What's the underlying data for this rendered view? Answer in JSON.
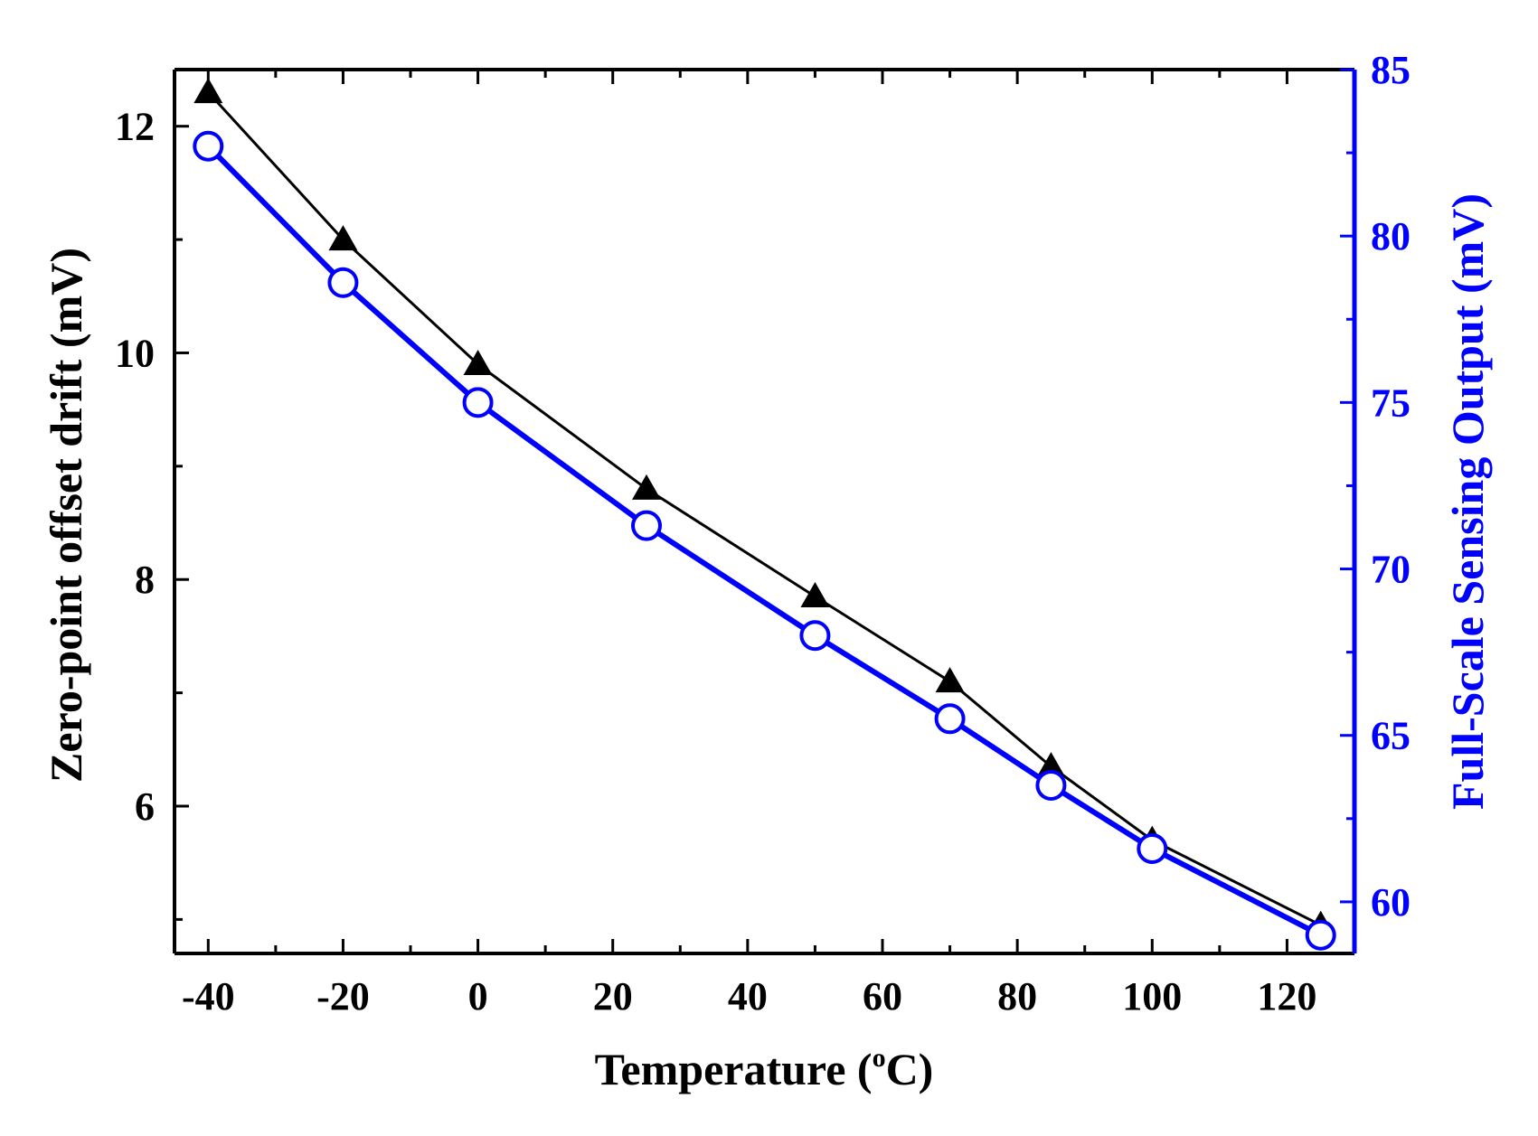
{
  "chart_data": {
    "type": "line",
    "title": "",
    "xlabel": {
      "main": "Temperature (",
      "superscript": "o",
      "unit": "C)"
    },
    "ylabel_left": "Zero-point offset drift (mV)",
    "ylabel_right": "Full-Scale Sensing Output (mV)",
    "x": [
      -40,
      -20,
      0,
      25,
      50,
      70,
      85,
      100,
      125
    ],
    "xlim": [
      -45,
      130
    ],
    "ylim_left": [
      4.7,
      12.5
    ],
    "ylim_right": [
      58.45,
      85
    ],
    "x_ticks": [
      -40,
      -20,
      0,
      20,
      40,
      60,
      80,
      100,
      120
    ],
    "y_left_ticks": [
      6,
      8,
      10,
      12
    ],
    "y_right_ticks": [
      60,
      65,
      70,
      75,
      80,
      85
    ],
    "grid": false,
    "series": [
      {
        "name": "Zero-point offset drift",
        "axis": "left",
        "marker": "filled-triangle",
        "color": "#000000",
        "values": [
          12.3,
          11.0,
          9.9,
          8.8,
          7.85,
          7.1,
          6.35,
          5.7,
          4.95
        ]
      },
      {
        "name": "Full-Scale Sensing Output",
        "axis": "right",
        "marker": "open-circle",
        "color": "#0000ff",
        "values": [
          82.7,
          78.6,
          75.0,
          71.3,
          68.0,
          65.5,
          63.5,
          61.6,
          59.0
        ]
      }
    ],
    "colors": {
      "left_axis": "#000000",
      "right_axis": "#0000ff"
    }
  }
}
